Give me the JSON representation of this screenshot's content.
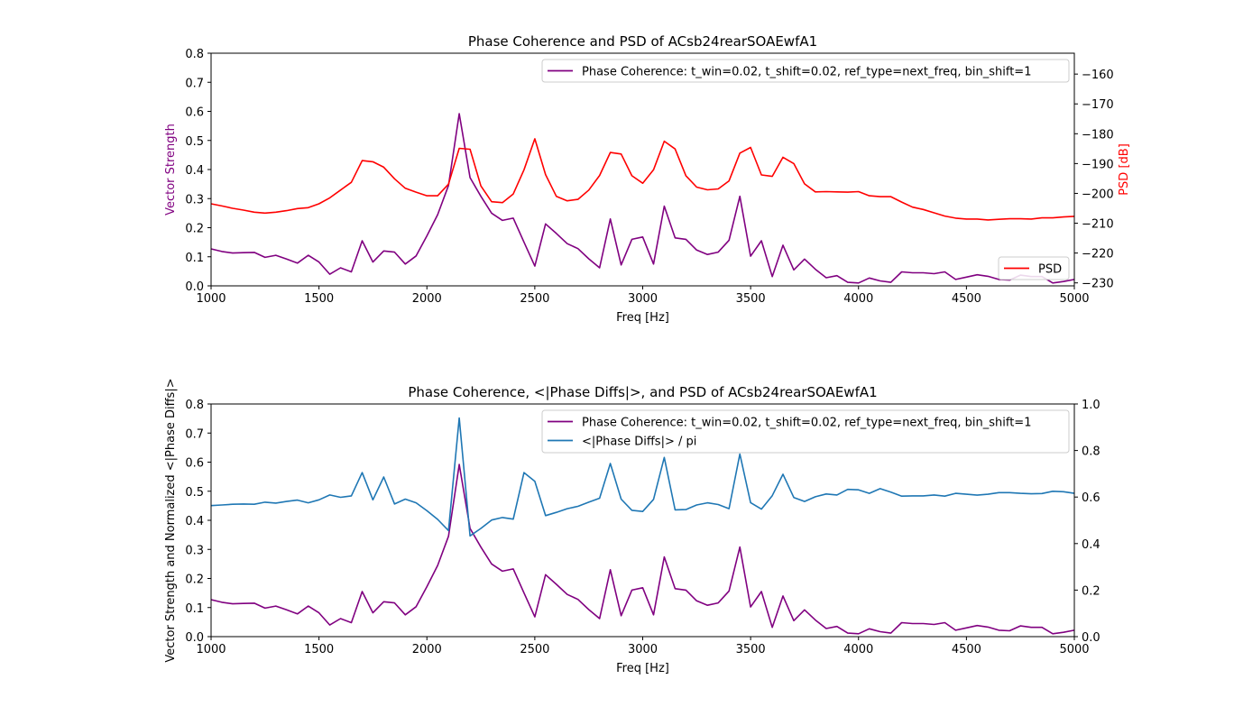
{
  "chart_data": [
    {
      "type": "line",
      "title": "Phase Coherence and PSD of ACsb24rearSOAEwfA1",
      "xlabel": "Freq [Hz]",
      "ylabel": "Vector Strength",
      "ylabel_right": "PSD [dB]",
      "xlim": [
        1000,
        5000
      ],
      "ylim": [
        0,
        0.8
      ],
      "ylim_right": [
        -231,
        -153
      ],
      "xticks": [
        "1000",
        "1500",
        "2000",
        "2500",
        "3000",
        "3500",
        "4000",
        "4500",
        "5000"
      ],
      "yticks": [
        "0.0",
        "0.1",
        "0.2",
        "0.3",
        "0.4",
        "0.5",
        "0.6",
        "0.7",
        "0.8"
      ],
      "yticks_right": [
        "−230",
        "−220",
        "−210",
        "−200",
        "−190",
        "−180",
        "−170",
        "−160"
      ],
      "grid": false,
      "legend": [
        {
          "label": "Phase Coherence: t_win=0.02, t_shift=0.02, ref_type=next_freq, bin_shift=1",
          "placement": "upper right"
        },
        {
          "label": "PSD",
          "placement": "lower right"
        }
      ],
      "series": [
        {
          "name": "Phase Coherence: t_win=0.02, t_shift=0.02, ref_type=next_freq, bin_shift=1",
          "color": "#800080",
          "axis": "left",
          "x": [
            1000,
            1050,
            1100,
            1150,
            1200,
            1250,
            1300,
            1350,
            1400,
            1450,
            1500,
            1550,
            1600,
            1650,
            1700,
            1750,
            1800,
            1850,
            1900,
            1950,
            2000,
            2050,
            2100,
            2150,
            2200,
            2250,
            2300,
            2350,
            2400,
            2450,
            2500,
            2550,
            2600,
            2650,
            2700,
            2750,
            2800,
            2850,
            2900,
            2950,
            3000,
            3050,
            3100,
            3150,
            3200,
            3250,
            3300,
            3350,
            3400,
            3450,
            3500,
            3550,
            3600,
            3650,
            3700,
            3750,
            3800,
            3850,
            3900,
            3950,
            4000,
            4050,
            4100,
            4150,
            4200,
            4250,
            4300,
            4350,
            4400,
            4450,
            4500,
            4550,
            4600,
            4650,
            4700,
            4750,
            4800,
            4850,
            4900,
            4950,
            5000
          ],
          "values": [
            0.127,
            0.118,
            0.113,
            0.114,
            0.115,
            0.098,
            0.105,
            0.092,
            0.078,
            0.105,
            0.082,
            0.04,
            0.062,
            0.048,
            0.155,
            0.082,
            0.12,
            0.116,
            0.075,
            0.103,
            0.172,
            0.245,
            0.345,
            0.592,
            0.372,
            0.308,
            0.25,
            0.225,
            0.233,
            0.15,
            0.068,
            0.213,
            0.18,
            0.145,
            0.128,
            0.093,
            0.062,
            0.23,
            0.072,
            0.16,
            0.168,
            0.075,
            0.274,
            0.165,
            0.16,
            0.123,
            0.108,
            0.116,
            0.157,
            0.308,
            0.102,
            0.155,
            0.032,
            0.14,
            0.055,
            0.092,
            0.057,
            0.028,
            0.035,
            0.012,
            0.01,
            0.027,
            0.017,
            0.012,
            0.048,
            0.045,
            0.045,
            0.042,
            0.048,
            0.022,
            0.03,
            0.038,
            0.033,
            0.022,
            0.02,
            0.037,
            0.032,
            0.032,
            0.01,
            0.015,
            0.022
          ]
        },
        {
          "name": "PSD",
          "color": "#ff0000",
          "axis": "right",
          "x": [
            1000,
            1050,
            1100,
            1150,
            1200,
            1250,
            1300,
            1350,
            1400,
            1450,
            1500,
            1550,
            1600,
            1650,
            1700,
            1750,
            1800,
            1850,
            1900,
            1950,
            2000,
            2050,
            2100,
            2150,
            2200,
            2250,
            2300,
            2350,
            2400,
            2450,
            2500,
            2550,
            2600,
            2650,
            2700,
            2750,
            2800,
            2850,
            2900,
            2950,
            3000,
            3050,
            3100,
            3150,
            3200,
            3250,
            3300,
            3350,
            3400,
            3450,
            3500,
            3550,
            3600,
            3650,
            3700,
            3750,
            3800,
            3850,
            3900,
            3950,
            4000,
            4050,
            4100,
            4150,
            4200,
            4250,
            4300,
            4350,
            4400,
            4450,
            4500,
            4550,
            4600,
            4650,
            4700,
            4750,
            4800,
            4850,
            4900,
            4950,
            5000
          ],
          "values": [
            -203.5,
            -204.2,
            -205.0,
            -205.6,
            -206.3,
            -206.6,
            -206.3,
            -205.8,
            -205.1,
            -204.8,
            -203.5,
            -201.5,
            -198.9,
            -196.3,
            -189.0,
            -189.4,
            -191.2,
            -195.1,
            -198.3,
            -199.6,
            -200.8,
            -200.8,
            -196.9,
            -184.9,
            -185.2,
            -197.5,
            -202.8,
            -203.1,
            -200.2,
            -192.1,
            -181.7,
            -193.7,
            -201.0,
            -202.5,
            -202.0,
            -198.9,
            -194.0,
            -186.3,
            -186.8,
            -194.1,
            -196.6,
            -192.1,
            -182.5,
            -185.1,
            -194.1,
            -197.9,
            -198.8,
            -198.5,
            -195.8,
            -186.5,
            -184.6,
            -193.8,
            -194.3,
            -187.9,
            -190.0,
            -196.8,
            -199.5,
            -199.4,
            -199.5,
            -199.6,
            -199.4,
            -200.8,
            -201.1,
            -201.1,
            -202.9,
            -204.6,
            -205.4,
            -206.5,
            -207.6,
            -208.3,
            -208.6,
            -208.6,
            -208.9,
            -208.7,
            -208.5,
            -208.5,
            -208.6,
            -208.2,
            -208.2,
            -207.9,
            -207.7
          ]
        }
      ]
    },
    {
      "type": "line",
      "title": "Phase Coherence, <|Phase Diffs|>, and PSD of ACsb24rearSOAEwfA1",
      "xlabel": "Freq [Hz]",
      "ylabel": "Vector Strength and Normalized <|Phase Diffs|>",
      "ylabel_right": "",
      "xlim": [
        1000,
        5000
      ],
      "ylim": [
        0,
        0.8
      ],
      "ylim_right": [
        0,
        1.0
      ],
      "xticks": [
        "1000",
        "1500",
        "2000",
        "2500",
        "3000",
        "3500",
        "4000",
        "4500",
        "5000"
      ],
      "yticks": [
        "0.0",
        "0.1",
        "0.2",
        "0.3",
        "0.4",
        "0.5",
        "0.6",
        "0.7",
        "0.8"
      ],
      "yticks_right": [
        "0.0",
        "0.2",
        "0.4",
        "0.6",
        "0.8",
        "1.0"
      ],
      "grid": false,
      "legend": [
        {
          "label": "Phase Coherence: t_win=0.02, t_shift=0.02, ref_type=next_freq, bin_shift=1",
          "placement": "upper right"
        },
        {
          "label": "<|Phase Diffs|> / pi",
          "placement": "upper right"
        }
      ],
      "series": [
        {
          "name": "Phase Coherence: t_win=0.02, t_shift=0.02, ref_type=next_freq, bin_shift=1",
          "color": "#800080",
          "axis": "left",
          "x": [
            1000,
            1050,
            1100,
            1150,
            1200,
            1250,
            1300,
            1350,
            1400,
            1450,
            1500,
            1550,
            1600,
            1650,
            1700,
            1750,
            1800,
            1850,
            1900,
            1950,
            2000,
            2050,
            2100,
            2150,
            2200,
            2250,
            2300,
            2350,
            2400,
            2450,
            2500,
            2550,
            2600,
            2650,
            2700,
            2750,
            2800,
            2850,
            2900,
            2950,
            3000,
            3050,
            3100,
            3150,
            3200,
            3250,
            3300,
            3350,
            3400,
            3450,
            3500,
            3550,
            3600,
            3650,
            3700,
            3750,
            3800,
            3850,
            3900,
            3950,
            4000,
            4050,
            4100,
            4150,
            4200,
            4250,
            4300,
            4350,
            4400,
            4450,
            4500,
            4550,
            4600,
            4650,
            4700,
            4750,
            4800,
            4850,
            4900,
            4950,
            5000
          ],
          "values": [
            0.127,
            0.118,
            0.113,
            0.114,
            0.115,
            0.098,
            0.105,
            0.092,
            0.078,
            0.105,
            0.082,
            0.04,
            0.062,
            0.048,
            0.155,
            0.082,
            0.12,
            0.116,
            0.075,
            0.103,
            0.172,
            0.245,
            0.345,
            0.592,
            0.372,
            0.308,
            0.25,
            0.225,
            0.233,
            0.15,
            0.068,
            0.213,
            0.18,
            0.145,
            0.128,
            0.093,
            0.062,
            0.23,
            0.072,
            0.16,
            0.168,
            0.075,
            0.274,
            0.165,
            0.16,
            0.123,
            0.108,
            0.116,
            0.157,
            0.308,
            0.102,
            0.155,
            0.032,
            0.14,
            0.055,
            0.092,
            0.057,
            0.028,
            0.035,
            0.012,
            0.01,
            0.027,
            0.017,
            0.012,
            0.048,
            0.045,
            0.045,
            0.042,
            0.048,
            0.022,
            0.03,
            0.038,
            0.033,
            0.022,
            0.02,
            0.037,
            0.032,
            0.032,
            0.01,
            0.015,
            0.022
          ]
        },
        {
          "name": "<|Phase Diffs|> / pi",
          "color": "#1f77b4",
          "axis": "right",
          "x": [
            1000,
            1050,
            1100,
            1150,
            1200,
            1250,
            1300,
            1350,
            1400,
            1450,
            1500,
            1550,
            1600,
            1650,
            1700,
            1750,
            1800,
            1850,
            1900,
            1950,
            2000,
            2050,
            2100,
            2150,
            2200,
            2250,
            2300,
            2350,
            2400,
            2450,
            2500,
            2550,
            2600,
            2650,
            2700,
            2750,
            2800,
            2850,
            2900,
            2950,
            3000,
            3050,
            3100,
            3150,
            3200,
            3250,
            3300,
            3350,
            3400,
            3450,
            3500,
            3550,
            3600,
            3650,
            3700,
            3750,
            3800,
            3850,
            3900,
            3950,
            4000,
            4050,
            4100,
            4150,
            4200,
            4250,
            4300,
            4350,
            4400,
            4450,
            4500,
            4550,
            4600,
            4650,
            4700,
            4750,
            4800,
            4850,
            4900,
            4950,
            5000
          ],
          "values": [
            0.563,
            0.566,
            0.569,
            0.57,
            0.569,
            0.578,
            0.574,
            0.581,
            0.587,
            0.575,
            0.588,
            0.609,
            0.599,
            0.605,
            0.705,
            0.588,
            0.686,
            0.57,
            0.591,
            0.575,
            0.541,
            0.504,
            0.456,
            0.94,
            0.433,
            0.465,
            0.501,
            0.512,
            0.505,
            0.705,
            0.668,
            0.52,
            0.534,
            0.55,
            0.56,
            0.578,
            0.595,
            0.744,
            0.591,
            0.543,
            0.538,
            0.59,
            0.77,
            0.545,
            0.546,
            0.566,
            0.575,
            0.568,
            0.55,
            0.785,
            0.576,
            0.548,
            0.606,
            0.698,
            0.598,
            0.581,
            0.601,
            0.613,
            0.609,
            0.633,
            0.631,
            0.616,
            0.636,
            0.621,
            0.604,
            0.605,
            0.605,
            0.609,
            0.604,
            0.616,
            0.612,
            0.608,
            0.612,
            0.619,
            0.619,
            0.616,
            0.614,
            0.615,
            0.625,
            0.623,
            0.616
          ]
        }
      ]
    }
  ]
}
